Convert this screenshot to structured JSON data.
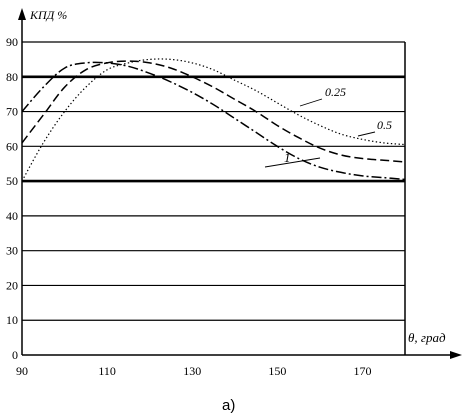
{
  "chart_data": {
    "type": "line",
    "ylabel": "КПД %",
    "xlabel": "θ, град",
    "caption": "а)",
    "xlim": [
      90,
      180
    ],
    "ylim": [
      0,
      90
    ],
    "xticks": [
      90,
      110,
      130,
      150,
      170
    ],
    "yticks": [
      0,
      10,
      20,
      30,
      40,
      50,
      60,
      70,
      80,
      90
    ],
    "grid": "horizontal",
    "emphasized_gridlines": [
      50,
      80
    ],
    "series": [
      {
        "name": "0.25",
        "style": "dotted",
        "x": [
          90,
          95,
          100,
          105,
          110,
          115,
          120,
          125,
          130,
          135,
          140,
          145,
          150,
          155,
          160,
          165,
          170,
          175,
          180
        ],
        "y": [
          50,
          61,
          70,
          77,
          82,
          84,
          85,
          85,
          84,
          82,
          79,
          76,
          72.5,
          69,
          66,
          63.5,
          62,
          61,
          60.5
        ]
      },
      {
        "name": "0.5",
        "style": "dashed",
        "x": [
          90,
          95,
          100,
          105,
          110,
          115,
          120,
          125,
          130,
          135,
          140,
          145,
          150,
          155,
          160,
          165,
          170,
          175,
          180
        ],
        "y": [
          61,
          69,
          77,
          82,
          84,
          84.5,
          84,
          82.5,
          80,
          77,
          73.5,
          70,
          66,
          62.5,
          59.5,
          57.5,
          56.5,
          56,
          55.5
        ]
      },
      {
        "name": "1",
        "style": "dash-dot",
        "x": [
          90,
          95,
          100,
          105,
          110,
          115,
          120,
          125,
          130,
          135,
          140,
          145,
          150,
          155,
          160,
          165,
          170,
          175,
          180
        ],
        "y": [
          70,
          77,
          82.5,
          84,
          84,
          83,
          81,
          78.5,
          75.5,
          72,
          68,
          64,
          60,
          56.5,
          54,
          52.5,
          51.5,
          51,
          50.5
        ]
      }
    ]
  }
}
